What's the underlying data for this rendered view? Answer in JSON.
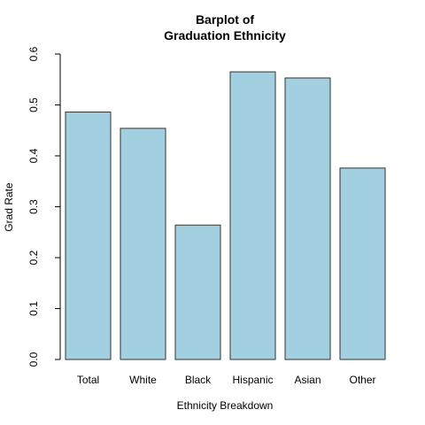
{
  "chart_data": {
    "type": "bar",
    "title_line1": "Barplot of",
    "title_line2": "Graduation Ethnicity",
    "xlabel": "Ethnicity Breakdown",
    "ylabel": "Grad Rate",
    "categories": [
      "Total",
      "White",
      "Black",
      "Hispanic",
      "Asian",
      "Other"
    ],
    "values": [
      0.486,
      0.454,
      0.264,
      0.565,
      0.553,
      0.376
    ],
    "ylim": [
      0,
      0.6
    ],
    "yticks": [
      "0.0",
      "0.1",
      "0.2",
      "0.3",
      "0.4",
      "0.5",
      "0.6"
    ],
    "grid": false,
    "bar_color": "#a2d0e0",
    "bar_stroke": "#333333"
  }
}
